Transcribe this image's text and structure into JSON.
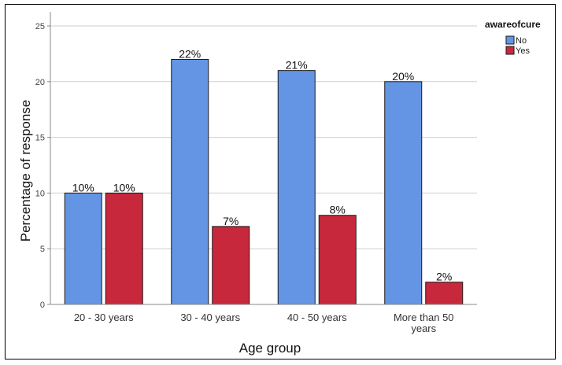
{
  "chart_data": {
    "type": "bar",
    "categories": [
      "20 - 30 years",
      "30 - 40 years",
      "40 - 50 years",
      "More than 50 years"
    ],
    "category_lines": [
      [
        "20 - 30 years"
      ],
      [
        "30 - 40 years"
      ],
      [
        "40 - 50 years"
      ],
      [
        "More than 50",
        "years"
      ]
    ],
    "series": [
      {
        "name": "No",
        "values": [
          10,
          22,
          21,
          20
        ],
        "labels": [
          "10%",
          "22%",
          "21%",
          "20%"
        ],
        "color": "#6495e4"
      },
      {
        "name": "Yes",
        "values": [
          10,
          7,
          8,
          2
        ],
        "labels": [
          "10%",
          "7%",
          "8%",
          "2%"
        ],
        "color": "#c8283c"
      }
    ],
    "title": "",
    "xlabel": "Age group",
    "ylabel": "Percentage of response",
    "ylim": [
      0,
      25
    ],
    "yticks": [
      0,
      5,
      10,
      15,
      20,
      25
    ],
    "grid": true,
    "legend": {
      "title": "awareofcure",
      "placement": "top-right"
    }
  }
}
